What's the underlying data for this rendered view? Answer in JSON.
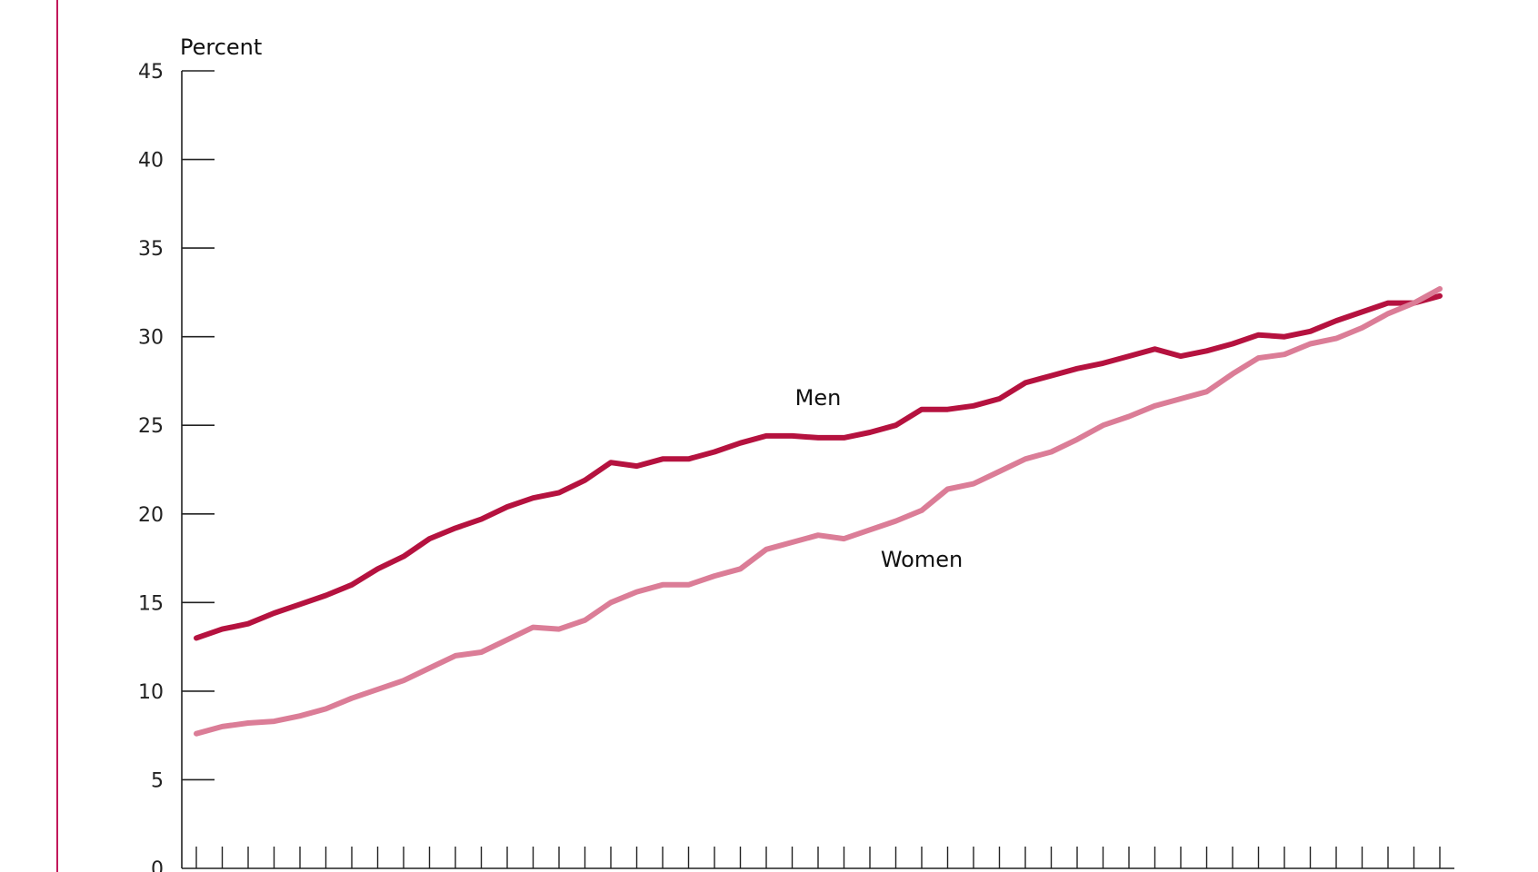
{
  "chart_data": {
    "type": "line",
    "title": "",
    "xlabel": "",
    "ylabel": "Percent",
    "ylim": [
      0,
      45
    ],
    "yticks": [
      0,
      5,
      10,
      15,
      20,
      25,
      30,
      35,
      40,
      45
    ],
    "grid": false,
    "legend": "inline labels",
    "x_count": 49,
    "series": [
      {
        "name": "Men",
        "color": "#B5123F",
        "values": [
          13.0,
          13.5,
          13.8,
          14.4,
          14.9,
          15.4,
          16.0,
          16.9,
          17.6,
          18.6,
          19.2,
          19.7,
          20.4,
          20.9,
          21.2,
          21.9,
          22.9,
          22.7,
          23.1,
          23.1,
          23.5,
          24.0,
          24.4,
          24.4,
          24.3,
          24.3,
          24.6,
          25.0,
          25.9,
          25.9,
          26.1,
          26.5,
          27.4,
          27.8,
          28.2,
          28.5,
          28.9,
          29.3,
          28.9,
          29.2,
          29.6,
          30.1,
          30.0,
          30.3,
          30.9,
          31.4,
          31.9,
          31.9,
          32.3
        ]
      },
      {
        "name": "Women",
        "color": "#DB7D97",
        "values": [
          7.6,
          8.0,
          8.2,
          8.3,
          8.6,
          9.0,
          9.6,
          10.1,
          10.6,
          11.3,
          12.0,
          12.2,
          12.9,
          13.6,
          13.5,
          14.0,
          15.0,
          15.6,
          16.0,
          16.0,
          16.5,
          16.9,
          18.0,
          18.4,
          18.8,
          18.6,
          19.1,
          19.6,
          20.2,
          21.4,
          21.7,
          22.4,
          23.1,
          23.5,
          24.2,
          25.0,
          25.5,
          26.1,
          26.5,
          26.9,
          27.9,
          28.8,
          29.0,
          29.6,
          29.9,
          30.5,
          31.3,
          31.9,
          32.7
        ]
      }
    ]
  }
}
